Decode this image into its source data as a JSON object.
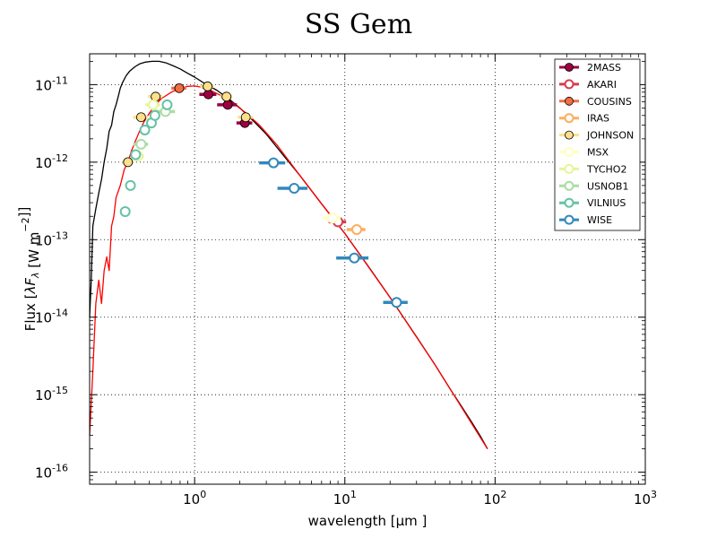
{
  "chart_data": {
    "type": "scatter",
    "title": "SS Gem",
    "xlabel": "wavelength [μm ]",
    "ylabel": "Flux [λF_λ [W  m⁻²]]",
    "xscale": "log",
    "yscale": "log",
    "xlim": [
      0.2,
      1000
    ],
    "ylim": [
      7e-17,
      2.5e-11
    ],
    "grid": true,
    "legend_position": "top-right",
    "x_tick_labels": [
      {
        "value": 1,
        "base": "10",
        "exp": "0"
      },
      {
        "value": 10,
        "base": "10",
        "exp": "1"
      },
      {
        "value": 100,
        "base": "10",
        "exp": "2"
      },
      {
        "value": 1000,
        "base": "10",
        "exp": "3"
      }
    ],
    "y_tick_labels": [
      {
        "value": 1e-11,
        "base": "10",
        "exp": "-11"
      },
      {
        "value": 1e-12,
        "base": "10",
        "exp": "-12"
      },
      {
        "value": 1e-13,
        "base": "10",
        "exp": "-13"
      },
      {
        "value": 1e-14,
        "base": "10",
        "exp": "-14"
      },
      {
        "value": 1e-15,
        "base": "10",
        "exp": "-15"
      },
      {
        "value": 1e-16,
        "base": "10",
        "exp": "-16"
      }
    ],
    "model_curves": [
      {
        "name": "stellar-model-black",
        "color": "#000000",
        "points": [
          [
            0.2,
            1e-14
          ],
          [
            0.205,
            3e-14
          ],
          [
            0.21,
            1.5e-13
          ],
          [
            0.22,
            2.5e-13
          ],
          [
            0.23,
            4e-13
          ],
          [
            0.24,
            6e-13
          ],
          [
            0.25,
            1e-12
          ],
          [
            0.26,
            1.5e-12
          ],
          [
            0.27,
            2.5e-12
          ],
          [
            0.28,
            3e-12
          ],
          [
            0.29,
            4.5e-12
          ],
          [
            0.3,
            5.5e-12
          ],
          [
            0.31,
            7e-12
          ],
          [
            0.32,
            9e-12
          ],
          [
            0.33,
            1.05e-11
          ],
          [
            0.35,
            1.3e-11
          ],
          [
            0.37,
            1.5e-11
          ],
          [
            0.4,
            1.7e-11
          ],
          [
            0.43,
            1.85e-11
          ],
          [
            0.47,
            1.95e-11
          ],
          [
            0.52,
            2e-11
          ],
          [
            0.58,
            2e-11
          ],
          [
            0.65,
            1.9e-11
          ],
          [
            0.72,
            1.75e-11
          ],
          [
            0.8,
            1.6e-11
          ],
          [
            0.9,
            1.4e-11
          ],
          [
            1.0,
            1.25e-11
          ],
          [
            1.2,
            1e-11
          ],
          [
            1.4,
            8.5e-12
          ],
          [
            1.7,
            6.5e-12
          ],
          [
            2.0,
            5e-12
          ],
          [
            2.5,
            3.3e-12
          ],
          [
            3.0,
            2.3e-12
          ],
          [
            4.0,
            1.15e-12
          ],
          [
            5.0,
            6.8e-13
          ],
          [
            7.0,
            2.9e-13
          ],
          [
            10,
            1.2e-13
          ],
          [
            15,
            4e-14
          ],
          [
            20,
            1.8e-14
          ],
          [
            30,
            5.6e-15
          ],
          [
            40,
            2.4e-15
          ],
          [
            50,
            1.2e-15
          ],
          [
            60,
            7e-16
          ],
          [
            70,
            4.4e-16
          ],
          [
            80,
            2.9e-16
          ],
          [
            89,
            2e-16
          ]
        ]
      },
      {
        "name": "reddened-model-red",
        "color": "#ff0000",
        "points": [
          [
            0.2,
            3e-16
          ],
          [
            0.21,
            2e-15
          ],
          [
            0.22,
            1.5e-14
          ],
          [
            0.23,
            3e-14
          ],
          [
            0.24,
            1.5e-14
          ],
          [
            0.25,
            4e-14
          ],
          [
            0.26,
            6e-14
          ],
          [
            0.27,
            4e-14
          ],
          [
            0.28,
            1.5e-13
          ],
          [
            0.29,
            2e-13
          ],
          [
            0.3,
            3.5e-13
          ],
          [
            0.32,
            5e-13
          ],
          [
            0.34,
            8e-13
          ],
          [
            0.36,
            1e-12
          ],
          [
            0.38,
            1.4e-12
          ],
          [
            0.4,
            1.8e-12
          ],
          [
            0.43,
            2.5e-12
          ],
          [
            0.46,
            3.3e-12
          ],
          [
            0.5,
            4.3e-12
          ],
          [
            0.55,
            5.5e-12
          ],
          [
            0.6,
            6.6e-12
          ],
          [
            0.7,
            8e-12
          ],
          [
            0.8,
            9e-12
          ],
          [
            0.9,
            9.5e-12
          ],
          [
            1.0,
            9.6e-12
          ],
          [
            1.1,
            9.3e-12
          ],
          [
            1.3,
            8.3e-12
          ],
          [
            1.5,
            7.2e-12
          ],
          [
            1.8,
            5.8e-12
          ],
          [
            2.2,
            4.3e-12
          ],
          [
            2.7,
            3e-12
          ],
          [
            3.5,
            1.7e-12
          ],
          [
            5.0,
            6.8e-13
          ],
          [
            7.0,
            2.9e-13
          ],
          [
            10,
            1.2e-13
          ],
          [
            20,
            1.8e-14
          ],
          [
            40,
            2.4e-15
          ],
          [
            89,
            2e-16
          ]
        ]
      }
    ],
    "series": [
      {
        "name": "2MASS",
        "color": "#9e0142",
        "filled": true,
        "points": [
          [
            1.235,
            7.5e-12,
            0.16
          ],
          [
            1.662,
            5.5e-12,
            0.25
          ],
          [
            2.159,
            3.2e-12,
            0.26
          ]
        ]
      },
      {
        "name": "AKARI",
        "color": "#d53e4f",
        "filled": false,
        "points": [
          [
            9.0,
            1.7e-13,
            1.2
          ]
        ]
      },
      {
        "name": "COUSINS",
        "color": "#f46d43",
        "filled": true,
        "points": [
          [
            0.79,
            9e-12,
            0.09
          ]
        ]
      },
      {
        "name": "IRAS",
        "color": "#fdae61",
        "filled": false,
        "points": [
          [
            12.0,
            1.35e-13,
            1.7
          ]
        ]
      },
      {
        "name": "JOHNSON",
        "color": "#fee08b",
        "filled": true,
        "points": [
          [
            0.36,
            1e-12,
            0.03
          ],
          [
            0.44,
            3.8e-12,
            0.05
          ],
          [
            0.55,
            7e-12,
            0.06
          ],
          [
            1.22,
            9.5e-12,
            0.13
          ],
          [
            1.63,
            7e-12,
            0.15
          ],
          [
            2.19,
            3.8e-12,
            0.25
          ]
        ]
      },
      {
        "name": "MSX",
        "color": "#ffffbf",
        "filled": false,
        "points": [
          [
            8.28,
            1.9e-13,
            1.1
          ]
        ]
      },
      {
        "name": "TYCHO2",
        "color": "#e6f598",
        "filled": false,
        "points": [
          [
            0.42,
            1.2e-12,
            0.04
          ],
          [
            0.53,
            5.5e-12,
            0.06
          ]
        ]
      },
      {
        "name": "USNOB1",
        "color": "#abdda4",
        "filled": false,
        "points": [
          [
            0.44,
            1.7e-12,
            0.05
          ],
          [
            0.64,
            4.5e-12,
            0.1
          ]
        ]
      },
      {
        "name": "VILNIUS",
        "color": "#66c2a5",
        "filled": false,
        "points": [
          [
            0.345,
            2.3e-13,
            0.02
          ],
          [
            0.374,
            5e-13,
            0.02
          ],
          [
            0.405,
            1.25e-12,
            0.02
          ],
          [
            0.466,
            2.6e-12,
            0.03
          ],
          [
            0.516,
            3.2e-12,
            0.03
          ],
          [
            0.544,
            4e-12,
            0.03
          ],
          [
            0.656,
            5.5e-12,
            0.04
          ]
        ]
      },
      {
        "name": "WISE",
        "color": "#3288bd",
        "filled": false,
        "points": [
          [
            3.35,
            9.8e-13,
            0.66
          ],
          [
            4.6,
            4.6e-13,
            1.04
          ],
          [
            11.56,
            5.8e-14,
            2.8
          ],
          [
            22.09,
            1.55e-14,
            4.1
          ]
        ]
      }
    ],
    "legend_extra_colors": {
      "WISE_marker": "#5e4fa2",
      "VILNIUS_marker": "#3288bd"
    }
  }
}
